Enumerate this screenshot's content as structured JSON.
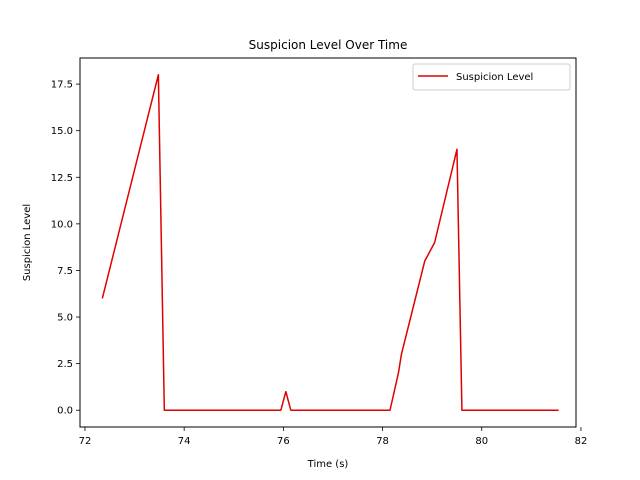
{
  "chart_data": {
    "type": "line",
    "title": "Suspicion Level Over Time",
    "xlabel": "Time (s)",
    "ylabel": "Suspicion Level",
    "xlim": [
      71.9,
      81.9
    ],
    "ylim": [
      -0.9,
      18.9
    ],
    "xticks": [
      72,
      74,
      76,
      78,
      80,
      82
    ],
    "yticks": [
      0.0,
      2.5,
      5.0,
      7.5,
      10.0,
      12.5,
      15.0,
      17.5
    ],
    "xtick_labels": [
      "72",
      "74",
      "76",
      "78",
      "80",
      "82"
    ],
    "ytick_labels": [
      "0.0",
      "2.5",
      "5.0",
      "7.5",
      "10.0",
      "12.5",
      "15.0",
      "17.5"
    ],
    "grid": false,
    "legend": {
      "position": "upper-right",
      "entries": [
        "Suspicion Level"
      ]
    },
    "series": [
      {
        "name": "Suspicion Level",
        "color": "#e00000",
        "x": [
          72.35,
          73.48,
          73.6,
          75.95,
          76.05,
          76.15,
          78.15,
          78.32,
          78.38,
          78.85,
          79.05,
          79.5,
          79.6,
          81.55
        ],
        "y": [
          6,
          18,
          0,
          0,
          1,
          0,
          0,
          2,
          3,
          8,
          9,
          14,
          0,
          0
        ]
      }
    ]
  }
}
